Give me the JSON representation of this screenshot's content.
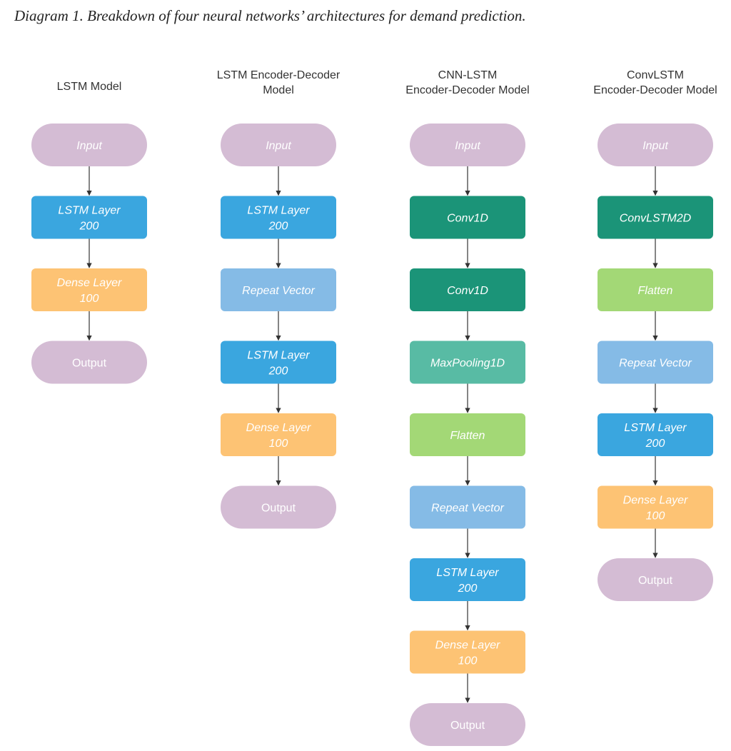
{
  "caption": "Diagram 1. Breakdown of four neural networks’ architectures for demand prediction.",
  "colors": {
    "terminal": "#d4bcd4",
    "lstm": "#3aa6df",
    "dense": "#fdc374",
    "repeat": "#85bbe6",
    "conv": "#1b9478",
    "pool": "#58bba4",
    "flatten": "#a3d876",
    "arrow": "#333333"
  },
  "columns": [
    {
      "title": [
        "LSTM Model"
      ],
      "nodes": [
        {
          "kind": "terminal",
          "lines": [
            "Input"
          ],
          "italic": true
        },
        {
          "kind": "lstm",
          "lines": [
            "LSTM Layer",
            "200"
          ],
          "italic": true
        },
        {
          "kind": "dense",
          "lines": [
            "Dense Layer",
            "100"
          ],
          "italic": true
        },
        {
          "kind": "terminal",
          "lines": [
            "Output"
          ],
          "italic": false
        }
      ]
    },
    {
      "title": [
        "LSTM Encoder-Decoder",
        "Model"
      ],
      "nodes": [
        {
          "kind": "terminal",
          "lines": [
            "Input"
          ],
          "italic": true
        },
        {
          "kind": "lstm",
          "lines": [
            "LSTM Layer",
            "200"
          ],
          "italic": true
        },
        {
          "kind": "repeat",
          "lines": [
            "Repeat Vector"
          ],
          "italic": true
        },
        {
          "kind": "lstm",
          "lines": [
            "LSTM Layer",
            "200"
          ],
          "italic": true
        },
        {
          "kind": "dense",
          "lines": [
            "Dense Layer",
            "100"
          ],
          "italic": true
        },
        {
          "kind": "terminal",
          "lines": [
            "Output"
          ],
          "italic": false
        }
      ]
    },
    {
      "title": [
        "CNN-LSTM",
        "Encoder-Decoder Model"
      ],
      "nodes": [
        {
          "kind": "terminal",
          "lines": [
            "Input"
          ],
          "italic": true
        },
        {
          "kind": "conv",
          "lines": [
            "Conv1D"
          ],
          "italic": true
        },
        {
          "kind": "conv",
          "lines": [
            "Conv1D"
          ],
          "italic": true
        },
        {
          "kind": "pool",
          "lines": [
            "MaxPooling1D"
          ],
          "italic": true
        },
        {
          "kind": "flatten",
          "lines": [
            "Flatten"
          ],
          "italic": true
        },
        {
          "kind": "repeat",
          "lines": [
            "Repeat Vector"
          ],
          "italic": true
        },
        {
          "kind": "lstm",
          "lines": [
            "LSTM Layer",
            "200"
          ],
          "italic": true
        },
        {
          "kind": "dense",
          "lines": [
            "Dense Layer",
            "100"
          ],
          "italic": true
        },
        {
          "kind": "terminal",
          "lines": [
            "Output"
          ],
          "italic": false
        }
      ]
    },
    {
      "title": [
        "ConvLSTM",
        "Encoder-Decoder Model"
      ],
      "nodes": [
        {
          "kind": "terminal",
          "lines": [
            "Input"
          ],
          "italic": true
        },
        {
          "kind": "conv",
          "lines": [
            "ConvLSTM2D"
          ],
          "italic": true
        },
        {
          "kind": "flatten",
          "lines": [
            "Flatten"
          ],
          "italic": true
        },
        {
          "kind": "repeat",
          "lines": [
            "Repeat Vector"
          ],
          "italic": true
        },
        {
          "kind": "lstm",
          "lines": [
            "LSTM Layer",
            "200"
          ],
          "italic": true
        },
        {
          "kind": "dense",
          "lines": [
            "Dense Layer",
            "100"
          ],
          "italic": true
        },
        {
          "kind": "terminal",
          "lines": [
            "Output"
          ],
          "italic": false
        }
      ]
    }
  ]
}
